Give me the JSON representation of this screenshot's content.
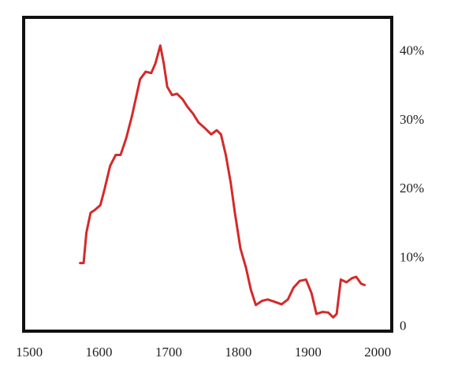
{
  "chart_data": {
    "type": "line",
    "x": [
      1573,
      1578,
      1582,
      1588,
      1594,
      1602,
      1608,
      1616,
      1624,
      1631,
      1639,
      1647,
      1654,
      1659,
      1667,
      1675,
      1681,
      1688,
      1693,
      1698,
      1705,
      1712,
      1720,
      1727,
      1735,
      1743,
      1752,
      1761,
      1769,
      1775,
      1782,
      1789,
      1795,
      1803,
      1811,
      1818,
      1825,
      1834,
      1842,
      1851,
      1862,
      1871,
      1879,
      1888,
      1897,
      1905,
      1912,
      1921,
      1929,
      1936,
      1941,
      1947,
      1955,
      1963,
      1969,
      1976,
      1981
    ],
    "series": [
      {
        "color": "#d42a2a",
        "values": [
          9.3,
          9.3,
          13.7,
          16.6,
          17,
          17.7,
          20,
          23.4,
          25,
          25,
          27.4,
          30.5,
          33.7,
          36,
          37.1,
          36.9,
          38.3,
          40.9,
          38.3,
          34.9,
          33.7,
          33.9,
          33.1,
          32,
          31,
          29.7,
          28.9,
          28,
          28.6,
          28,
          25,
          21,
          16.6,
          11.4,
          8.6,
          5.4,
          3.2,
          3.8,
          4,
          3.7,
          3.3,
          4,
          5.7,
          6.7,
          6.9,
          4.9,
          1.9,
          2.2,
          2.1,
          1.4,
          1.9,
          6.9,
          6.5,
          7.1,
          7.3,
          6.3,
          6.1
        ]
      }
    ],
    "xlim": [
      1492,
      2020
    ],
    "xticks": [
      1500,
      1600,
      1700,
      1800,
      1900,
      2000
    ],
    "ylim": [
      -0.6,
      45
    ],
    "yticks": [
      0,
      {
        "value": 10,
        "label": "10%"
      },
      {
        "value": 20,
        "label": "20%"
      },
      {
        "value": 30,
        "label": "30%"
      },
      {
        "value": 40,
        "label": "40%"
      }
    ],
    "y_axis_side": "right",
    "grid": false
  }
}
